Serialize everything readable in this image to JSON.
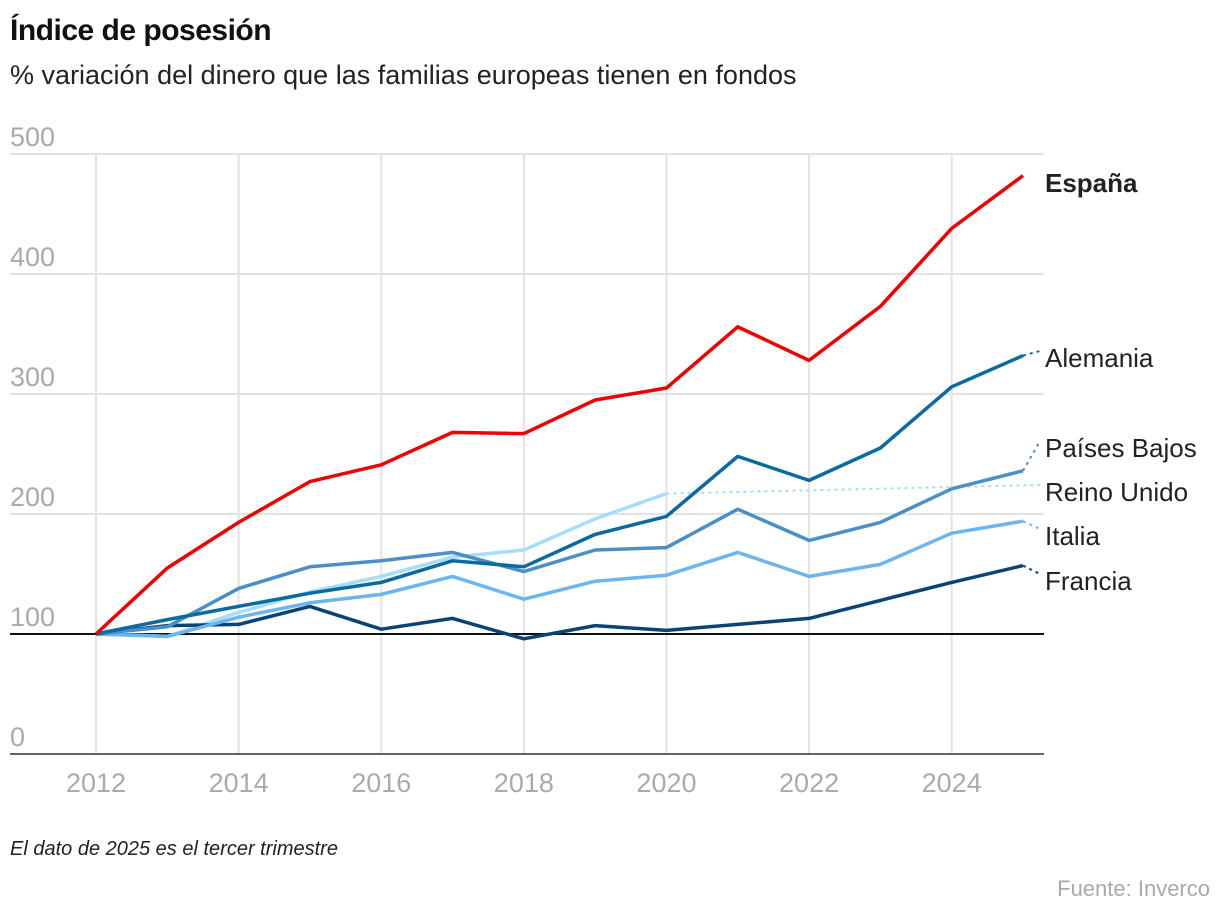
{
  "header": {
    "title": "Índice de posesión",
    "subtitle": "% variación del dinero que las familias europeas tienen en fondos"
  },
  "footer": {
    "note": "El dato de 2025 es el tercer trimestre",
    "source": "Fuente: Inverco"
  },
  "chart_data": {
    "type": "line",
    "title": "Índice de posesión",
    "subtitle": "% variación del dinero que las familias europeas tienen en fondos",
    "xlabel": "",
    "ylabel": "",
    "ylim": [
      0,
      500
    ],
    "xlim": [
      2012,
      2025
    ],
    "yticks": [
      0,
      100,
      200,
      300,
      400,
      500
    ],
    "xticks": [
      2012,
      2014,
      2016,
      2018,
      2020,
      2022,
      2024
    ],
    "baseline": 100,
    "grid": true,
    "legend": "right (direct labels)",
    "x": [
      2012,
      2013,
      2014,
      2015,
      2016,
      2017,
      2018,
      2019,
      2020,
      2021,
      2022,
      2023,
      2024,
      2025
    ],
    "series": [
      {
        "name": "España",
        "color": "#f00000",
        "bold": true,
        "values": [
          100,
          155,
          193,
          227,
          241,
          268,
          267,
          295,
          305,
          356,
          328,
          373,
          438,
          482
        ]
      },
      {
        "name": "Alemania",
        "color": "#0b6a9f",
        "values": [
          100,
          112,
          123,
          134,
          143,
          161,
          156,
          183,
          198,
          248,
          228,
          255,
          306,
          332
        ]
      },
      {
        "name": "Países Bajos",
        "color": "#4a8fc6",
        "values": [
          100,
          106,
          138,
          156,
          161,
          168,
          152,
          170,
          172,
          204,
          178,
          193,
          221,
          236
        ]
      },
      {
        "name": "Reino Unido",
        "color": "#a6def7",
        "values": [
          100,
          98,
          118,
          135,
          148,
          164,
          170,
          196,
          217,
          null,
          null,
          null,
          null,
          null
        ]
      },
      {
        "name": "Italia",
        "color": "#6cb5ef",
        "values": [
          100,
          98,
          114,
          126,
          133,
          148,
          129,
          144,
          149,
          168,
          148,
          158,
          184,
          194
        ]
      },
      {
        "name": "Francia",
        "color": "#0c4373",
        "values": [
          100,
          107,
          108,
          123,
          104,
          113,
          96,
          107,
          103,
          108,
          113,
          128,
          143,
          157
        ]
      }
    ]
  }
}
